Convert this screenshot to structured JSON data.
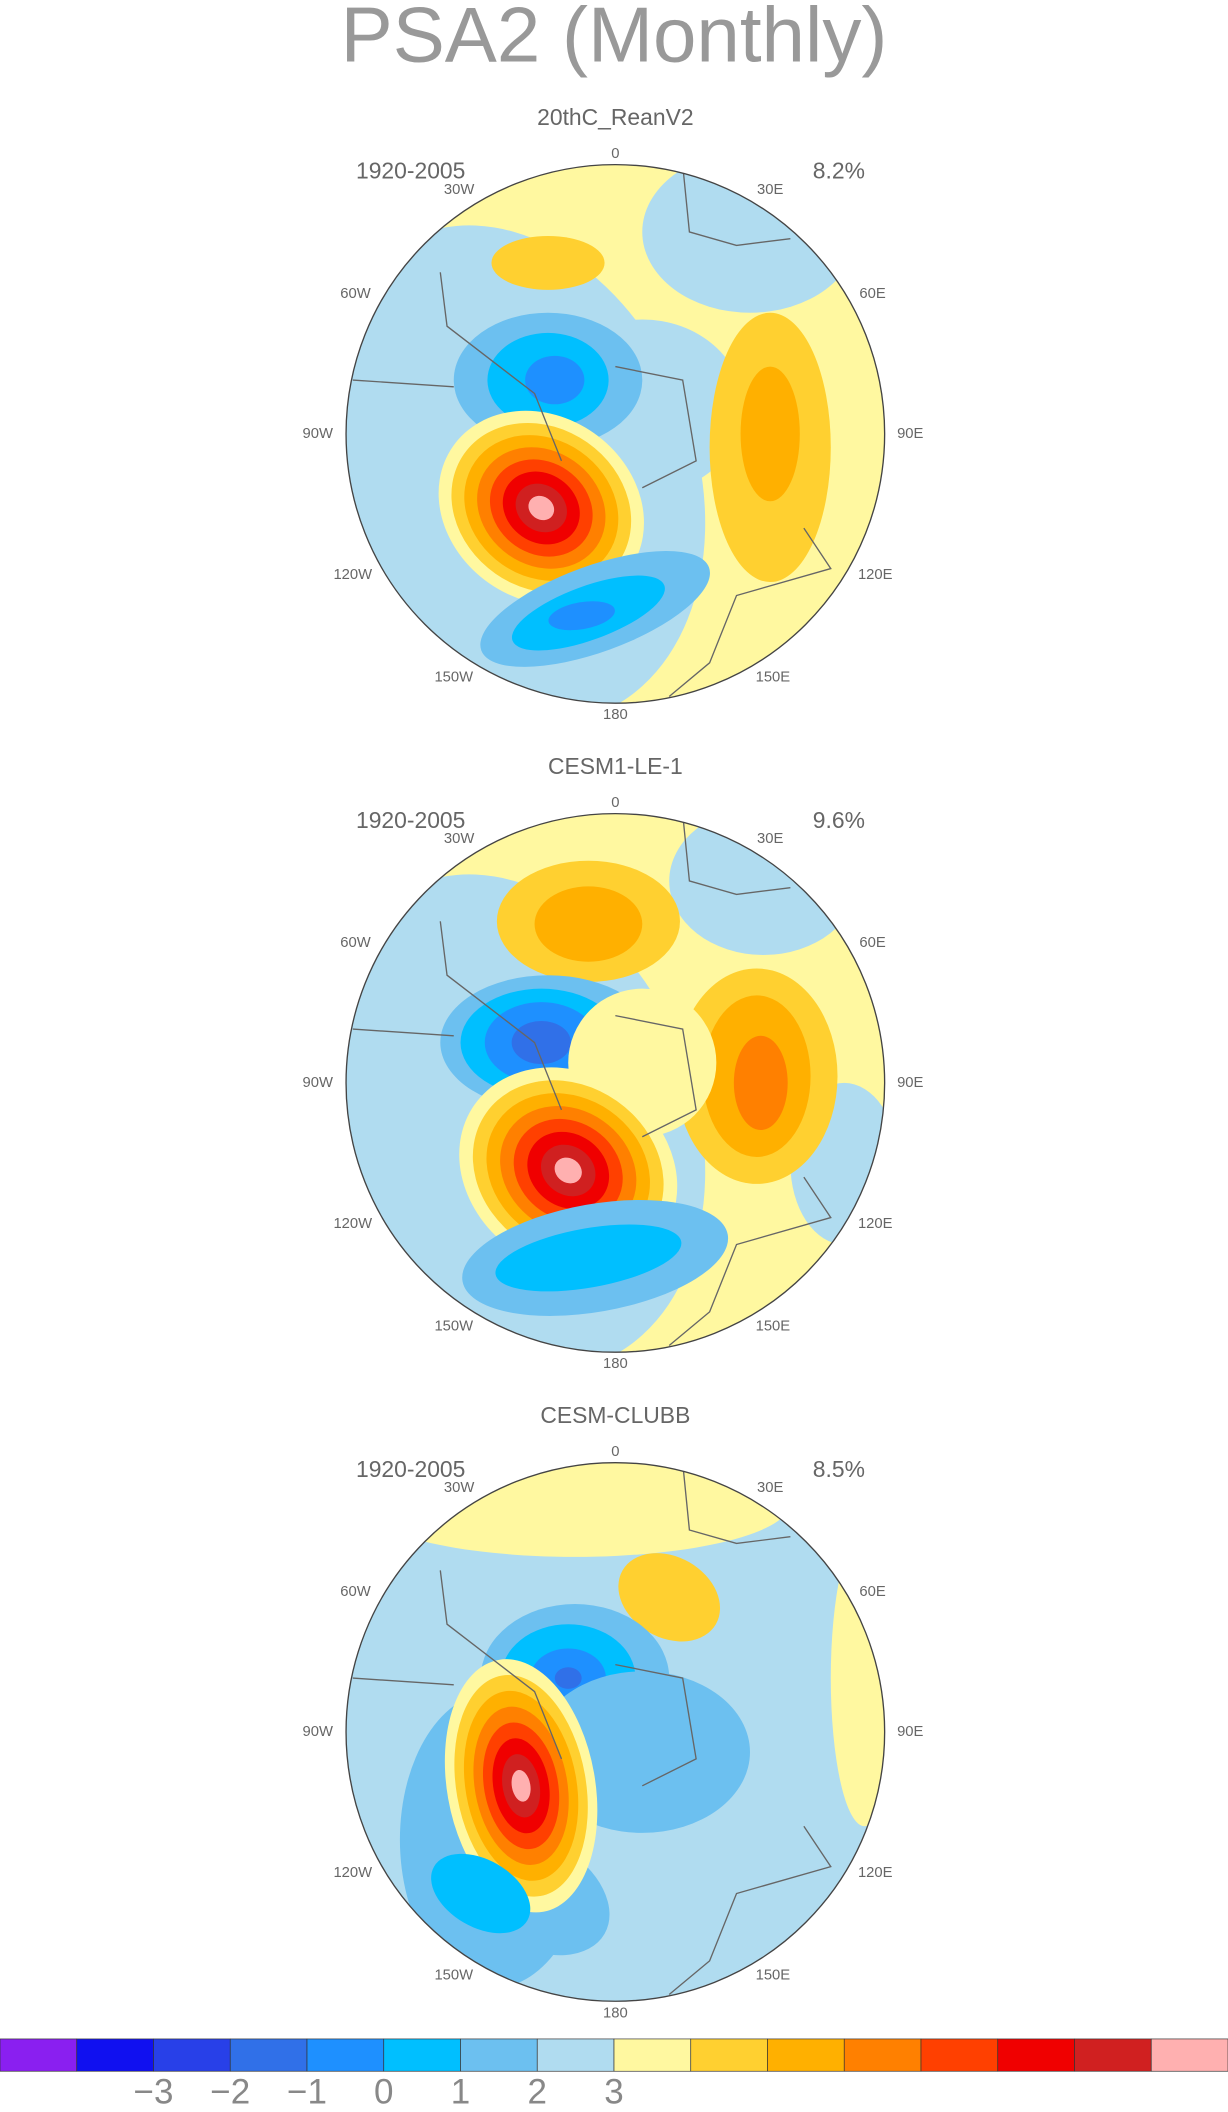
{
  "title": "PSA2 (Monthly)",
  "lon_labels": [
    "0",
    "30W",
    "30E",
    "60W",
    "60E",
    "90W",
    "90E",
    "120W",
    "120E",
    "150W",
    "150E",
    "180"
  ],
  "panels": [
    {
      "title": "20thC_ReanV2",
      "period": "1920-2005",
      "variance": "8.2%"
    },
    {
      "title": "CESM1-LE-1",
      "period": "1920-2005",
      "variance": "9.6%"
    },
    {
      "title": "CESM-CLUBB",
      "period": "1920-2005",
      "variance": "8.5%"
    }
  ],
  "colorbar": {
    "colors": [
      "#8a1ff0",
      "#1010f0",
      "#2840e8",
      "#3070e8",
      "#1e90ff",
      "#00bfff",
      "#6cc0f0",
      "#b0dcf0",
      "#fff8a0",
      "#ffd030",
      "#ffb000",
      "#ff8000",
      "#ff4000",
      "#f00000",
      "#d02020",
      "#ffb0b0"
    ],
    "labels": [
      "−3",
      "−2",
      "−1",
      "0",
      "1",
      "2",
      "3"
    ]
  }
}
